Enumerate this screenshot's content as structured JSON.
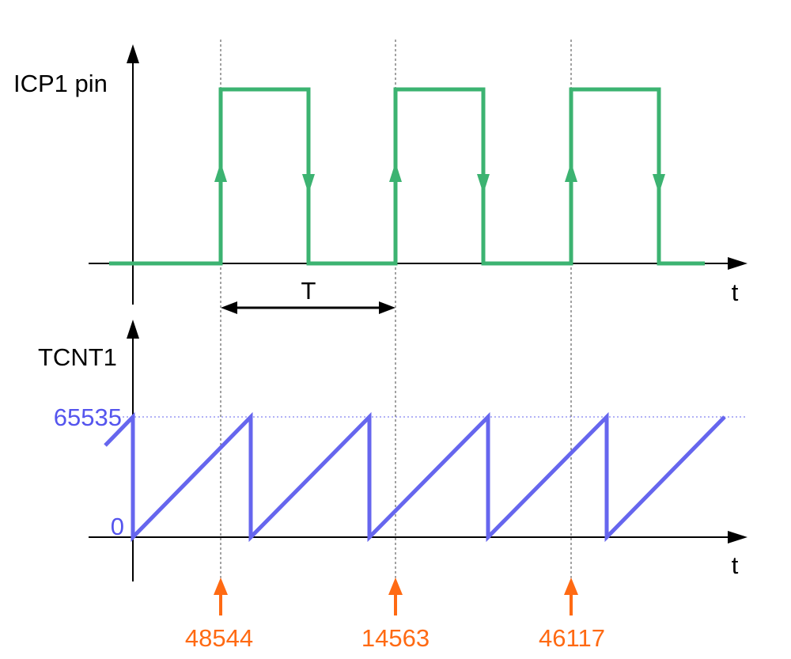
{
  "colors": {
    "signal": "#3cb371",
    "counter": "#6666ee",
    "capture": "#ff6a13",
    "axis": "#000000",
    "guide": "#444444"
  },
  "icp_panel": {
    "ylabel": "ICP1 pin",
    "xlabel": "t"
  },
  "period": {
    "label": "T"
  },
  "tcnt_panel": {
    "ylabel": "TCNT1",
    "xlabel": "t",
    "max_label": "65535",
    "zero_label": "0"
  },
  "captures": [
    {
      "value": "48544"
    },
    {
      "value": "14563"
    },
    {
      "value": "46117"
    }
  ]
}
